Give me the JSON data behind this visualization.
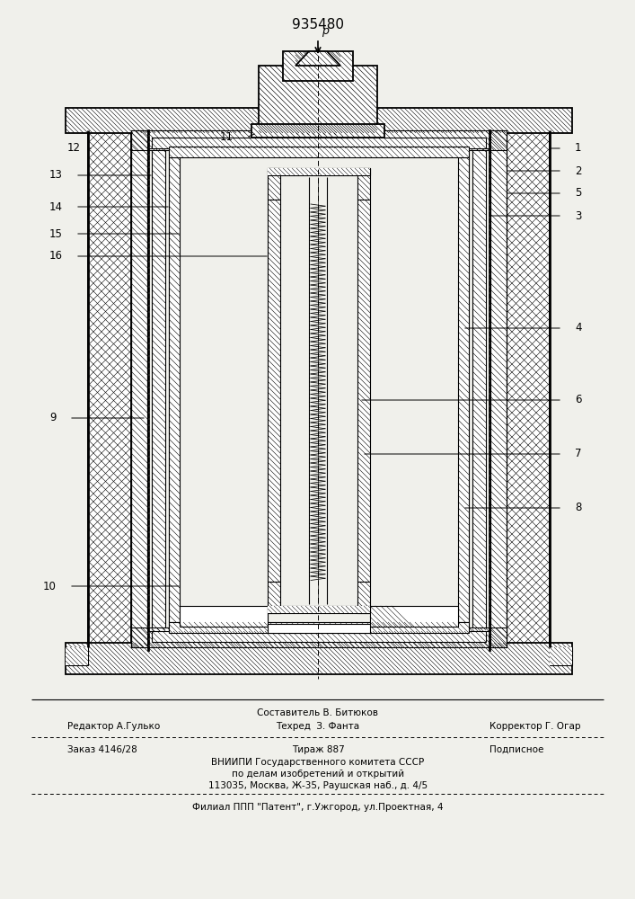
{
  "patent_number": "935480",
  "bg_color": "#f0f0eb",
  "footer_line1": "Составитель В. Битюков",
  "footer_line2_left": "Редактор А.Гулько",
  "footer_line2_mid": "Техред  З. Фанта",
  "footer_line2_right": "Корректор Г. Огар",
  "footer_line3_left": "Заказ 4146/28",
  "footer_line3_mid": "Тираж 887",
  "footer_line3_right": "Подписное",
  "footer_line4": "ВНИИПИ Государственного комитета СССР",
  "footer_line5": "по делам изобретений и открытий",
  "footer_line6": "113035, Москва, Ж-35, Раушская наб., д. 4/5",
  "footer_line7": "Филиал ППП \"Патент\", г.Ужгород, ул.Проектная, 4"
}
